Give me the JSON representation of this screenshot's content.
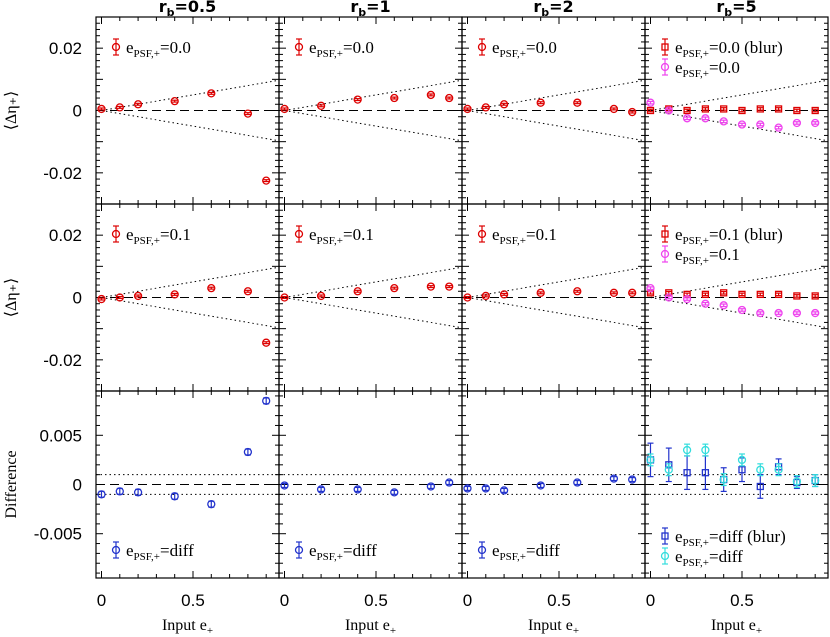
{
  "chart_data": {
    "type": "scatter",
    "columns": [
      "r_b=0.5",
      "r_b=1",
      "r_b=2",
      "r_b=5"
    ],
    "column_titles": [
      {
        "main": "r",
        "sub": "b",
        "value": "=0.5"
      },
      {
        "main": "r",
        "sub": "b",
        "value": "=1"
      },
      {
        "main": "r",
        "sub": "b",
        "value": "=2"
      },
      {
        "main": "r",
        "sub": "b",
        "value": "=5"
      }
    ],
    "xlabel": {
      "main": "Input e",
      "sub": "+"
    },
    "xlim": [
      -0.03,
      0.97
    ],
    "xticks": [
      "0",
      "0.5"
    ],
    "rows": [
      {
        "ylabel": "⟨Δη₊⟩",
        "ylim": [
          -0.03,
          0.03
        ],
        "yticks": [
          "0.02",
          "0",
          "-0.02"
        ],
        "ytick_values": [
          0.02,
          0,
          -0.02
        ],
        "legends": [
          [
            {
              "text_main": "e",
              "text_sub": "PSF,+",
              "text_value": "=0.0",
              "text_suffix": ""
            }
          ],
          [
            {
              "text_main": "e",
              "text_sub": "PSF,+",
              "text_value": "=0.0",
              "text_suffix": ""
            }
          ],
          [
            {
              "text_main": "e",
              "text_sub": "PSF,+",
              "text_value": "=0.0",
              "text_suffix": ""
            }
          ],
          [
            {
              "text_main": "e",
              "text_sub": "PSF,+",
              "text_value": "=0.0",
              "text_suffix": "(blur)"
            },
            {
              "text_main": "e",
              "text_sub": "PSF,+",
              "text_value": "=0.0",
              "text_suffix": ""
            }
          ]
        ],
        "panels": [
          {
            "series": [
              {
                "name": "",
                "color": "#dd0000",
                "marker": "circle",
                "x": [
                  0.0,
                  0.1,
                  0.2,
                  0.4,
                  0.6,
                  0.8,
                  0.9
                ],
                "y": [
                  0.0005,
                  0.001,
                  0.002,
                  0.003,
                  0.0055,
                  -0.001,
                  -0.0225
                ],
                "err": [
                  0.0003,
                  0.0003,
                  0.0003,
                  0.0003,
                  0.0003,
                  0.0003,
                  0.0003
                ]
              }
            ]
          },
          {
            "series": [
              {
                "name": "",
                "color": "#dd0000",
                "marker": "circle",
                "x": [
                  0.0,
                  0.2,
                  0.4,
                  0.6,
                  0.8,
                  0.9
                ],
                "y": [
                  0.0005,
                  0.0015,
                  0.0035,
                  0.004,
                  0.005,
                  0.004
                ],
                "err": [
                  0.0003,
                  0.0003,
                  0.0003,
                  0.0003,
                  0.0003,
                  0.0003
                ]
              }
            ]
          },
          {
            "series": [
              {
                "name": "",
                "color": "#dd0000",
                "marker": "circle",
                "x": [
                  0.0,
                  0.1,
                  0.2,
                  0.4,
                  0.6,
                  0.8,
                  0.9
                ],
                "y": [
                  0.0005,
                  0.001,
                  0.002,
                  0.0025,
                  0.0025,
                  0.0005,
                  -0.0005
                ],
                "err": [
                  0.0003,
                  0.0003,
                  0.0003,
                  0.0003,
                  0.0003,
                  0.0003,
                  0.0003
                ]
              }
            ]
          },
          {
            "series": [
              {
                "name": "",
                "color": "#dd0000",
                "marker": "square",
                "x": [
                  0.0,
                  0.1,
                  0.2,
                  0.3,
                  0.4,
                  0.5,
                  0.6,
                  0.7,
                  0.8,
                  0.9
                ],
                "y": [
                  0.0,
                  0.0005,
                  0.0,
                  0.0005,
                  0.0005,
                  0.0,
                  0.0005,
                  0.0005,
                  0.0,
                  0.0
                ],
                "err": [
                  0.0004,
                  0.0004,
                  0.0004,
                  0.0004,
                  0.0004,
                  0.0004,
                  0.0004,
                  0.0004,
                  0.0004,
                  0.0004
                ]
              },
              {
                "name": "",
                "color": "#ee44ee",
                "marker": "circle",
                "x": [
                  0.0,
                  0.1,
                  0.2,
                  0.3,
                  0.4,
                  0.5,
                  0.6,
                  0.7,
                  0.8,
                  0.9
                ],
                "y": [
                  0.0025,
                  0.0,
                  -0.0025,
                  -0.0025,
                  -0.0035,
                  -0.0045,
                  -0.0045,
                  -0.0055,
                  -0.004,
                  -0.004
                ],
                "err": [
                  0.0004,
                  0.0004,
                  0.0004,
                  0.0004,
                  0.0004,
                  0.0004,
                  0.0004,
                  0.0004,
                  0.0004,
                  0.0004
                ]
              }
            ]
          }
        ]
      },
      {
        "ylabel": "⟨Δη₊⟩",
        "ylim": [
          -0.03,
          0.03
        ],
        "yticks": [
          "0.02",
          "0",
          "-0.02"
        ],
        "ytick_values": [
          0.02,
          0,
          -0.02
        ],
        "legends": [
          [
            {
              "text_main": "e",
              "text_sub": "PSF,+",
              "text_value": "=0.1",
              "text_suffix": ""
            }
          ],
          [
            {
              "text_main": "e",
              "text_sub": "PSF,+",
              "text_value": "=0.1",
              "text_suffix": ""
            }
          ],
          [
            {
              "text_main": "e",
              "text_sub": "PSF,+",
              "text_value": "=0.1",
              "text_suffix": ""
            }
          ],
          [
            {
              "text_main": "e",
              "text_sub": "PSF,+",
              "text_value": "=0.1",
              "text_suffix": "(blur)"
            },
            {
              "text_main": "e",
              "text_sub": "PSF,+",
              "text_value": "=0.1",
              "text_suffix": ""
            }
          ]
        ],
        "panels": [
          {
            "series": [
              {
                "name": "",
                "color": "#dd0000",
                "marker": "circle",
                "x": [
                  0.0,
                  0.1,
                  0.2,
                  0.4,
                  0.6,
                  0.8,
                  0.9
                ],
                "y": [
                  -0.0005,
                  0.0,
                  0.0005,
                  0.001,
                  0.003,
                  0.002,
                  -0.0145
                ],
                "err": [
                  0.0003,
                  0.0003,
                  0.0003,
                  0.0003,
                  0.0003,
                  0.0003,
                  0.0003
                ]
              }
            ]
          },
          {
            "series": [
              {
                "name": "",
                "color": "#dd0000",
                "marker": "circle",
                "x": [
                  0.0,
                  0.2,
                  0.4,
                  0.6,
                  0.8,
                  0.9
                ],
                "y": [
                  0.0,
                  0.0005,
                  0.002,
                  0.003,
                  0.0035,
                  0.0035
                ],
                "err": [
                  0.0003,
                  0.0003,
                  0.0003,
                  0.0003,
                  0.0003,
                  0.0003
                ]
              }
            ]
          },
          {
            "series": [
              {
                "name": "",
                "color": "#dd0000",
                "marker": "circle",
                "x": [
                  0.0,
                  0.1,
                  0.2,
                  0.4,
                  0.6,
                  0.8,
                  0.9
                ],
                "y": [
                  0.0,
                  0.0005,
                  0.001,
                  0.0015,
                  0.002,
                  0.0015,
                  0.0015
                ],
                "err": [
                  0.0003,
                  0.0003,
                  0.0003,
                  0.0003,
                  0.0003,
                  0.0003,
                  0.0003
                ]
              }
            ]
          },
          {
            "series": [
              {
                "name": "",
                "color": "#dd0000",
                "marker": "square",
                "x": [
                  0.0,
                  0.1,
                  0.2,
                  0.3,
                  0.4,
                  0.5,
                  0.6,
                  0.7,
                  0.8,
                  0.9
                ],
                "y": [
                  0.0015,
                  0.0015,
                  0.001,
                  0.001,
                  0.0015,
                  0.001,
                  0.001,
                  0.001,
                  0.0005,
                  0.0005
                ],
                "err": [
                  0.0004,
                  0.0004,
                  0.0004,
                  0.0004,
                  0.0004,
                  0.0004,
                  0.0004,
                  0.0004,
                  0.0004,
                  0.0004
                ]
              },
              {
                "name": "",
                "color": "#ee44ee",
                "marker": "circle",
                "x": [
                  0.0,
                  0.1,
                  0.2,
                  0.3,
                  0.4,
                  0.5,
                  0.6,
                  0.7,
                  0.8,
                  0.9
                ],
                "y": [
                  0.003,
                  0.0,
                  -0.0005,
                  -0.002,
                  -0.0025,
                  -0.004,
                  -0.005,
                  -0.005,
                  -0.005,
                  -0.005
                ],
                "err": [
                  0.0004,
                  0.0004,
                  0.0004,
                  0.0004,
                  0.0004,
                  0.0004,
                  0.0004,
                  0.0004,
                  0.0004,
                  0.0004
                ]
              }
            ]
          }
        ]
      },
      {
        "ylabel": "Difference",
        "ylim": [
          -0.0095,
          0.0095
        ],
        "yticks": [
          "0.005",
          "0",
          "-0.005"
        ],
        "ytick_values": [
          0.005,
          0,
          -0.005
        ],
        "legends": [
          [
            {
              "text_main": "e",
              "text_sub": "PSF,+",
              "text_value": "=diff",
              "text_suffix": ""
            }
          ],
          [
            {
              "text_main": "e",
              "text_sub": "PSF,+",
              "text_value": "=diff",
              "text_suffix": ""
            }
          ],
          [
            {
              "text_main": "e",
              "text_sub": "PSF,+",
              "text_value": "=diff",
              "text_suffix": ""
            }
          ],
          [
            {
              "text_main": "e",
              "text_sub": "PSF,+",
              "text_value": "=diff",
              "text_suffix": "(blur)"
            },
            {
              "text_main": "e",
              "text_sub": "PSF,+",
              "text_value": "=diff",
              "text_suffix": ""
            }
          ]
        ],
        "panels": [
          {
            "series": [
              {
                "name": "",
                "color": "#2233cc",
                "marker": "circle",
                "x": [
                  0.0,
                  0.1,
                  0.2,
                  0.4,
                  0.6,
                  0.8,
                  0.9
                ],
                "y": [
                  -0.001,
                  -0.0007,
                  -0.0008,
                  -0.0012,
                  -0.002,
                  0.0033,
                  0.0085
                ],
                "err": [
                  0.0003,
                  0.0003,
                  0.0003,
                  0.0003,
                  0.0003,
                  0.0003,
                  0.0003
                ]
              }
            ]
          },
          {
            "series": [
              {
                "name": "",
                "color": "#2233cc",
                "marker": "circle",
                "x": [
                  0.0,
                  0.2,
                  0.4,
                  0.6,
                  0.8,
                  0.9
                ],
                "y": [
                  -0.0001,
                  -0.0005,
                  -0.0005,
                  -0.0008,
                  -0.0002,
                  0.0002
                ],
                "err": [
                  0.0002,
                  0.0002,
                  0.0002,
                  0.0002,
                  0.0002,
                  0.0002
                ]
              }
            ]
          },
          {
            "series": [
              {
                "name": "",
                "color": "#2233cc",
                "marker": "circle",
                "x": [
                  0.0,
                  0.1,
                  0.2,
                  0.4,
                  0.6,
                  0.8,
                  0.9
                ],
                "y": [
                  -0.0004,
                  -0.0004,
                  -0.0006,
                  -0.0001,
                  0.0002,
                  0.0006,
                  0.0005
                ],
                "err": [
                  0.0002,
                  0.0002,
                  0.0002,
                  0.0002,
                  0.0002,
                  0.0002,
                  0.0002
                ]
              }
            ]
          },
          {
            "series": [
              {
                "name": "",
                "color": "#2233cc",
                "marker": "square",
                "x": [
                  0.0,
                  0.1,
                  0.2,
                  0.3,
                  0.4,
                  0.5,
                  0.6,
                  0.7,
                  0.8,
                  0.9
                ],
                "y": [
                  0.0025,
                  0.002,
                  0.0012,
                  0.0012,
                  0.0005,
                  0.0015,
                  -0.0002,
                  0.0018,
                  0.0002,
                  0.0004
                ],
                "err": [
                  0.0017,
                  0.0017,
                  0.0017,
                  0.0017,
                  0.0012,
                  0.0012,
                  0.0012,
                  0.0008,
                  0.0006,
                  0.0006
                ]
              },
              {
                "name": "",
                "color": "#33dddd",
                "marker": "circle",
                "x": [
                  0.0,
                  0.1,
                  0.2,
                  0.3,
                  0.4,
                  0.5,
                  0.6,
                  0.7,
                  0.8,
                  0.9
                ],
                "y": [
                  0.0025,
                  0.0015,
                  0.0035,
                  0.0035,
                  0.0005,
                  0.0025,
                  0.0015,
                  0.0015,
                  0.0003,
                  0.0004
                ],
                "err": [
                  0.0006,
                  0.0006,
                  0.0006,
                  0.0006,
                  0.0006,
                  0.0006,
                  0.0006,
                  0.0006,
                  0.0006,
                  0.0006
                ]
              }
            ]
          }
        ]
      }
    ]
  }
}
